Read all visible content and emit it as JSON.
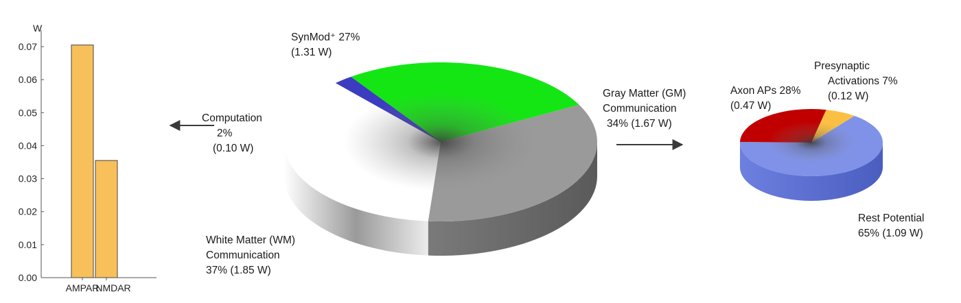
{
  "chart_data": [
    {
      "type": "bar",
      "ylabel": "W",
      "categories": [
        "AMPAR",
        "NMDAR"
      ],
      "values": [
        0.0705,
        0.0355
      ],
      "ylim": [
        0,
        0.075
      ],
      "yticks": [
        "0.00",
        "0.01",
        "0.02",
        "0.03",
        "0.04",
        "0.05",
        "0.06",
        "0.07"
      ],
      "grid": false,
      "bar_color": "#f8c05a"
    },
    {
      "type": "pie",
      "slices": [
        {
          "value": 27,
          "color": "#14e614",
          "label_lines": [
            "SynMod⁺ 27%",
            "(1.31 W)"
          ]
        },
        {
          "value": 34,
          "color": "#9a9a9a",
          "label_lines": [
            "Gray Matter (GM)",
            "Communication",
            "34%  (1.67 W)"
          ]
        },
        {
          "value": 37,
          "color": "#ffffff",
          "label_lines": [
            "White Matter (WM)",
            "Communication",
            "37%    (1.85 W)"
          ]
        },
        {
          "value": 2,
          "color": "#3c3cc0",
          "label_lines": [
            "Computation",
            "2%",
            "(0.10 W)"
          ]
        }
      ]
    },
    {
      "type": "pie",
      "slices": [
        {
          "value": 7,
          "color": "#fbc043",
          "label_lines": [
            "Presynaptic",
            "Activations 7%",
            "(0.12 W)"
          ]
        },
        {
          "value": 65,
          "color": "#8092e8",
          "label_lines": [
            "Rest Potential",
            "65% (1.09 W)"
          ]
        },
        {
          "value": 28,
          "color": "#c00000",
          "label_lines": [
            "Axon APs 28%",
            "(0.47 W)"
          ]
        }
      ]
    }
  ]
}
